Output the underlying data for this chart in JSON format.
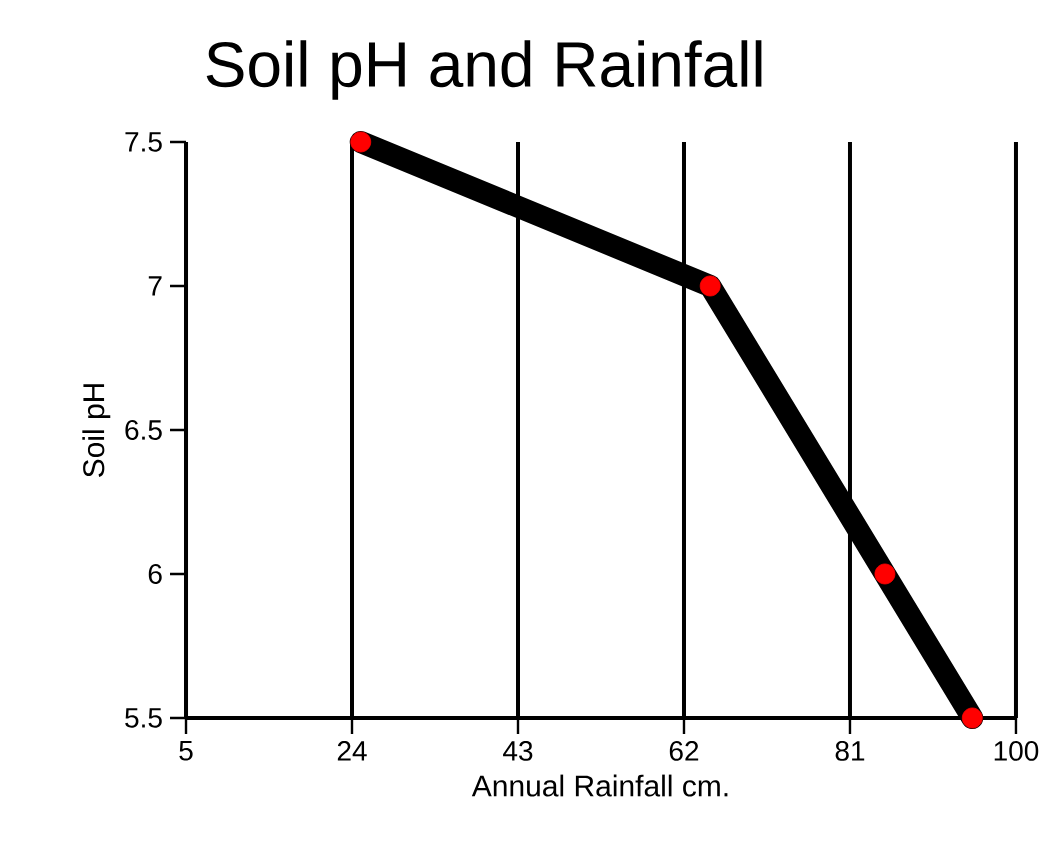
{
  "chart_data": {
    "type": "line",
    "title": "Soil pH and Rainfall",
    "xlabel": "Annual Rainfall cm.",
    "ylabel": "Soil pH",
    "x": [
      25,
      65,
      85,
      95
    ],
    "series": [
      {
        "color": "#000000",
        "colors": [
          "#ff0000",
          "#ff0000",
          "#ff0000",
          "#ff0000"
        ],
        "values": [
          7.5,
          7.0,
          6.0,
          5.5
        ]
      }
    ],
    "xlim": [
      5,
      100
    ],
    "ylim": [
      5.5,
      7.5
    ],
    "xticks": [
      5,
      24,
      43,
      62,
      81,
      100
    ],
    "yticks": [
      5.5,
      6,
      6.5,
      7,
      7.5
    ],
    "grid": "x",
    "marker": "circle",
    "line_style": "solid"
  }
}
